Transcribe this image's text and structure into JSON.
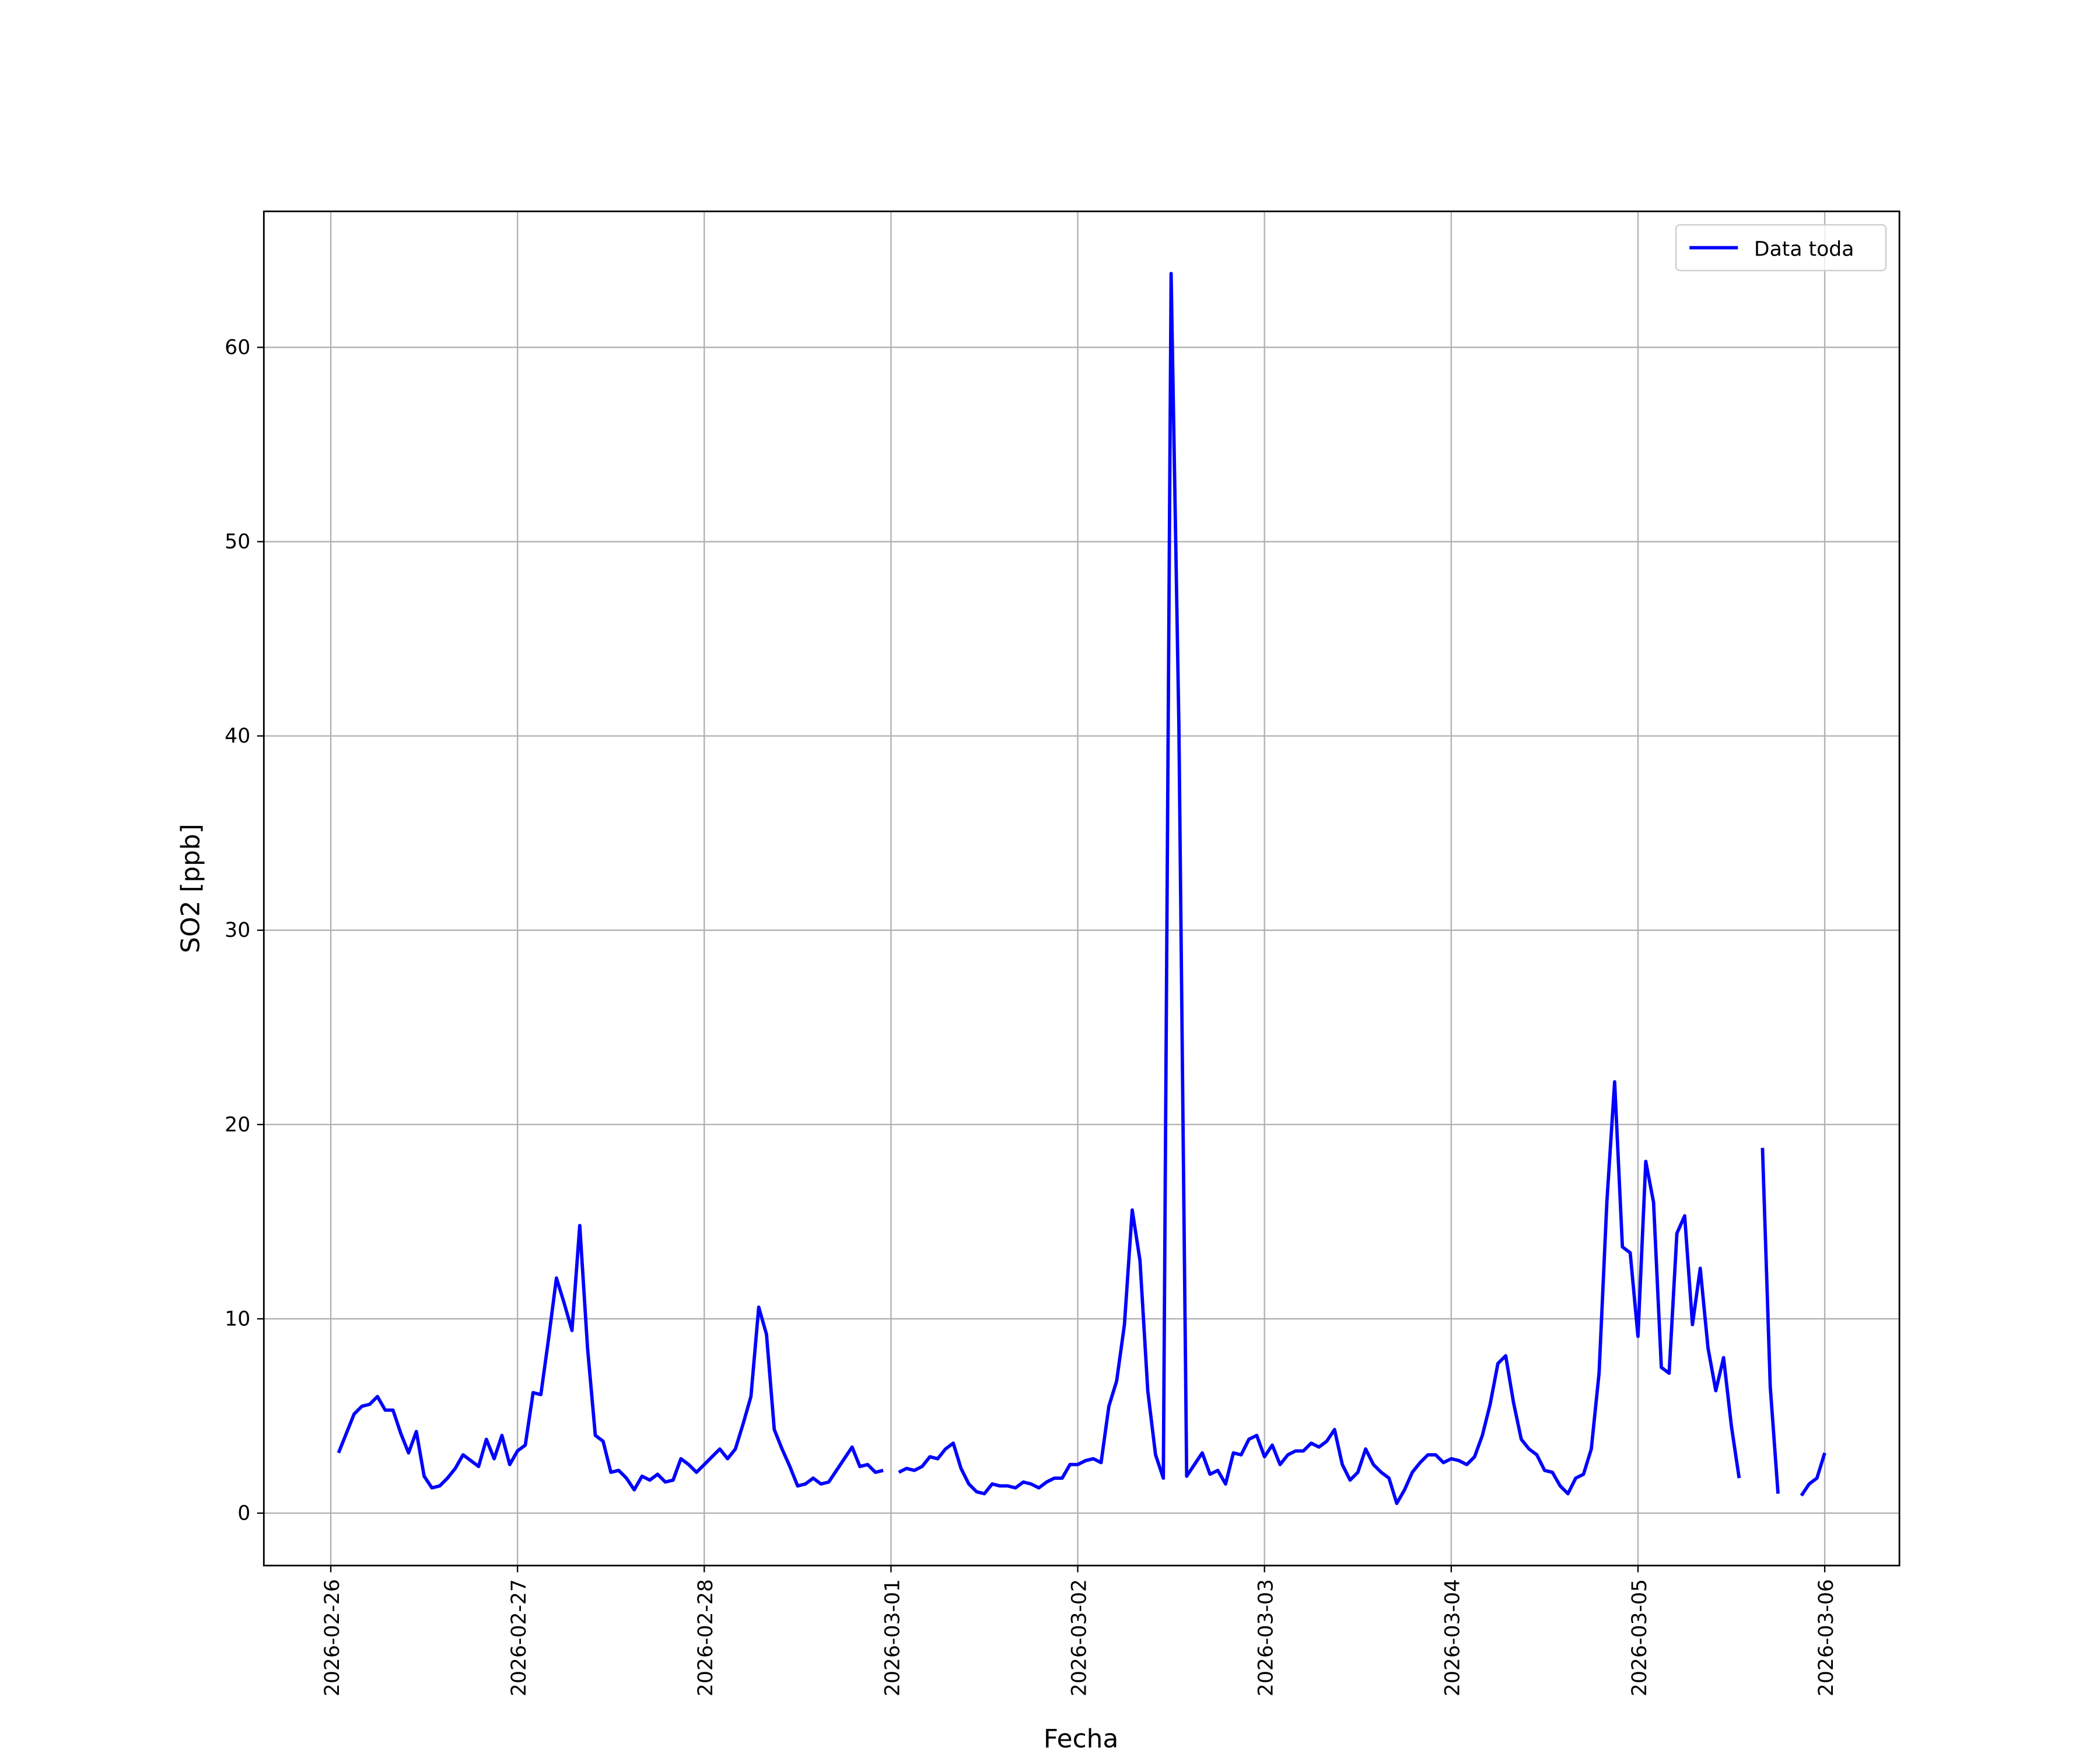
{
  "chart_data": {
    "type": "line",
    "xlabel": "Fecha",
    "ylabel": "SO2 [ppb]",
    "x": [
      1,
      2,
      3,
      4,
      5,
      6,
      7,
      8,
      9,
      10,
      11,
      12,
      13,
      14,
      15,
      16,
      17,
      18,
      19,
      20,
      21,
      22,
      23,
      24,
      25,
      26,
      27,
      28,
      29,
      30,
      31,
      32,
      33,
      34,
      35,
      36,
      37,
      38,
      39,
      40,
      41,
      42,
      43,
      44,
      45,
      46,
      47,
      48,
      49,
      50,
      51,
      52,
      53,
      54,
      55,
      56,
      57,
      58,
      59,
      60,
      61,
      62,
      63,
      64,
      65,
      66,
      67,
      68,
      69,
      70,
      71,
      72,
      73,
      74,
      75,
      76,
      77,
      78,
      79,
      80,
      81,
      82,
      83,
      84,
      85,
      86,
      87,
      88,
      89,
      90,
      91,
      92,
      93,
      94,
      95,
      96,
      97,
      98,
      99,
      100,
      101,
      102,
      103,
      104,
      105,
      106,
      107,
      108,
      109,
      110,
      111,
      112,
      113,
      114,
      115,
      116,
      117,
      118,
      119,
      120,
      121,
      122,
      123,
      124,
      125,
      126,
      127,
      128,
      129,
      130,
      131,
      132,
      133,
      134,
      135,
      136,
      137,
      138,
      139,
      140,
      141,
      142,
      143,
      144,
      145,
      146,
      147,
      148,
      149,
      150,
      151,
      152,
      153,
      154,
      155,
      156,
      157,
      158,
      159,
      160,
      161,
      162,
      163,
      164,
      165,
      166,
      167,
      168,
      169,
      170,
      171,
      172,
      173,
      174,
      175,
      176,
      177,
      178,
      179,
      180,
      181,
      182,
      183,
      184,
      185,
      186,
      187,
      188,
      189,
      190,
      191,
      192
    ],
    "series": [
      {
        "name": "Data toda",
        "color": "#0000ff",
        "values": [
          3.1,
          4.1,
          5.1,
          5.5,
          5.6,
          6.0,
          5.3,
          5.3,
          4.1,
          3.1,
          4.2,
          1.9,
          1.3,
          1.4,
          1.8,
          2.3,
          3.0,
          2.7,
          2.4,
          3.8,
          2.8,
          4.0,
          2.5,
          3.2,
          3.5,
          6.2,
          6.1,
          9.0,
          12.1,
          10.8,
          9.4,
          14.8,
          8.5,
          4.0,
          3.7,
          2.1,
          2.2,
          1.8,
          1.2,
          1.9,
          1.7,
          2.0,
          1.6,
          1.7,
          2.8,
          2.5,
          2.1,
          2.5,
          2.9,
          3.3,
          2.8,
          3.3,
          4.6,
          6.0,
          10.6,
          9.2,
          4.3,
          3.3,
          2.4,
          1.4,
          1.5,
          1.8,
          1.5,
          1.6,
          2.2,
          2.8,
          3.4,
          2.4,
          2.5,
          2.1,
          2.2,
          null,
          2.1,
          2.3,
          2.2,
          2.4,
          2.9,
          2.8,
          3.3,
          3.6,
          2.3,
          1.5,
          1.1,
          1.0,
          1.5,
          1.4,
          1.4,
          1.3,
          1.6,
          1.5,
          1.3,
          1.6,
          1.8,
          1.8,
          2.5,
          2.5,
          2.7,
          2.8,
          2.6,
          5.5,
          6.8,
          9.7,
          15.6,
          13.0,
          6.3,
          3.0,
          1.8,
          63.8,
          40.5,
          1.9,
          2.5,
          3.1,
          2.0,
          2.2,
          1.5,
          3.1,
          3.0,
          3.8,
          4.0,
          2.9,
          3.5,
          2.5,
          3.0,
          3.2,
          3.2,
          3.6,
          3.4,
          3.7,
          4.3,
          2.5,
          1.7,
          2.1,
          3.3,
          2.5,
          2.1,
          1.8,
          0.5,
          1.2,
          2.1,
          2.6,
          3.0,
          3.0,
          2.6,
          2.8,
          2.7,
          2.5,
          2.9,
          4.0,
          5.6,
          7.7,
          8.1,
          5.7,
          3.8,
          3.3,
          3.0,
          2.2,
          2.1,
          1.4,
          1.0,
          1.8,
          2.0,
          3.3,
          7.2,
          16.0,
          22.2,
          13.7,
          13.4,
          9.1,
          18.1,
          16.0,
          7.5,
          7.2,
          14.4,
          15.3,
          9.7,
          12.6,
          8.5,
          6.3,
          8.0,
          4.5,
          1.8,
          null,
          null,
          18.8,
          6.5,
          1.0,
          null,
          null,
          0.9,
          1.5,
          1.8,
          3.1
        ]
      }
    ],
    "xlim": [
      -8.6,
      201.6
    ],
    "xticks": [
      {
        "value": 0,
        "label": "2026-02-26"
      },
      {
        "value": 24,
        "label": "2026-02-27"
      },
      {
        "value": 48,
        "label": "2026-02-28"
      },
      {
        "value": 72,
        "label": "2026-03-01"
      },
      {
        "value": 96,
        "label": "2026-03-02"
      },
      {
        "value": 120,
        "label": "2026-03-03"
      },
      {
        "value": 144,
        "label": "2026-03-04"
      },
      {
        "value": 168,
        "label": "2026-03-05"
      },
      {
        "value": 192,
        "label": "2026-03-06"
      }
    ],
    "ylim": [
      -2.7,
      67.0
    ],
    "yticks": [
      0,
      10,
      20,
      30,
      40,
      50,
      60
    ],
    "grid": true,
    "legend": "upper right"
  }
}
